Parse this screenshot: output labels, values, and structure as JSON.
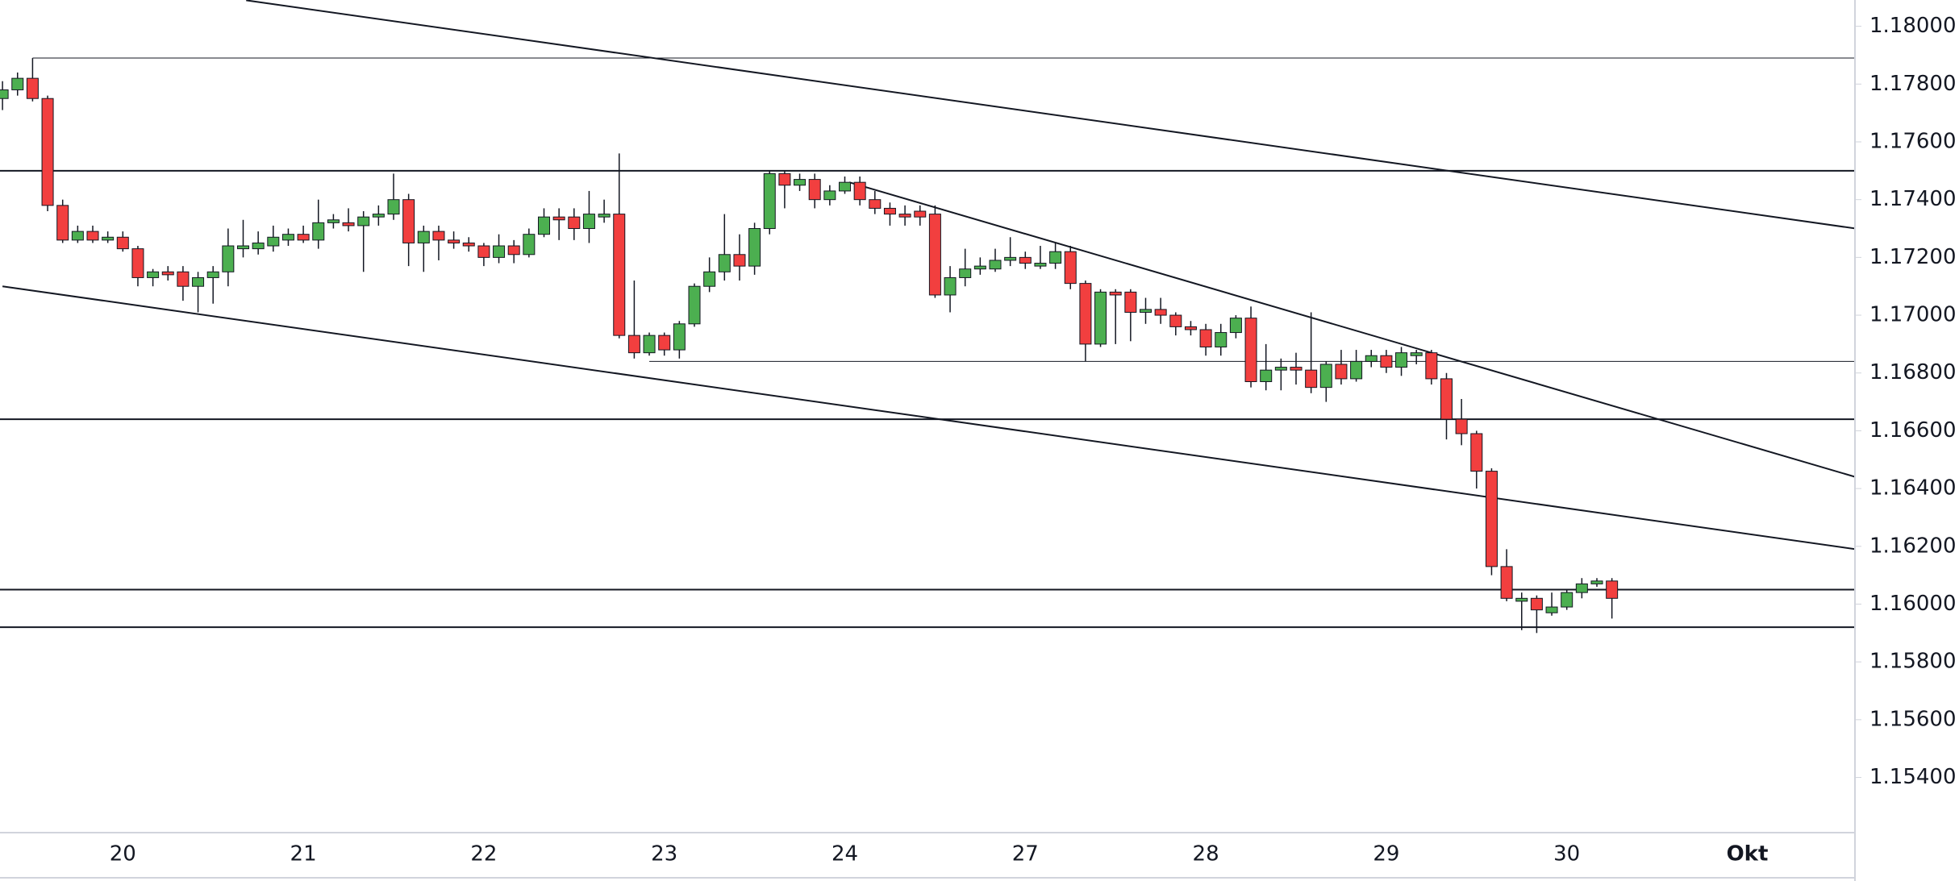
{
  "chart_data": {
    "type": "candlestick",
    "categories": [
      null,
      null,
      null,
      null,
      null,
      null,
      null,
      null,
      "20",
      null,
      null,
      null,
      null,
      null,
      null,
      null,
      null,
      null,
      null,
      null,
      "21",
      null,
      null,
      null,
      null,
      null,
      null,
      null,
      null,
      null,
      null,
      null,
      "22",
      null,
      null,
      null,
      null,
      null,
      null,
      null,
      null,
      null,
      null,
      null,
      "23",
      null,
      null,
      null,
      null,
      null,
      null,
      null,
      null,
      null,
      null,
      null,
      "24",
      null,
      null,
      null,
      null,
      null,
      null,
      null,
      null,
      null,
      null,
      null,
      "27",
      null,
      null,
      null,
      null,
      null,
      null,
      null,
      null,
      null,
      null,
      null,
      "28",
      null,
      null,
      null,
      null,
      null,
      null,
      null,
      null,
      null,
      null,
      null,
      "29",
      null,
      null,
      null,
      null,
      null,
      null,
      null,
      null,
      null,
      null,
      null,
      "30",
      null,
      null,
      null,
      null,
      null,
      null,
      null,
      null,
      null,
      null,
      null,
      "Okt"
    ],
    "open": [
      1.1775,
      1.1778,
      1.1782,
      1.1775,
      1.1738,
      1.1726,
      1.1729,
      1.1726,
      1.1727,
      1.1723,
      1.1713,
      1.1715,
      1.1715,
      1.171,
      1.1713,
      1.1715,
      1.1723,
      1.1723,
      1.1724,
      1.1726,
      1.1728,
      1.1726,
      1.1732,
      1.1732,
      1.1731,
      1.1734,
      1.1735,
      1.174,
      1.1725,
      1.1729,
      1.1726,
      1.1725,
      1.1724,
      1.172,
      1.1724,
      1.1721,
      1.1728,
      1.1734,
      1.1734,
      1.173,
      1.1734,
      1.1735,
      1.1693,
      1.1687,
      1.1693,
      1.1688,
      1.1697,
      1.171,
      1.1715,
      1.1721,
      1.1717,
      1.173,
      1.1749,
      1.1745,
      1.1747,
      1.174,
      1.1743,
      1.1746,
      1.174,
      1.1737,
      1.1735,
      1.1736,
      1.1735,
      1.1707,
      1.1713,
      1.1716,
      1.1716,
      1.1719,
      1.172,
      1.1717,
      1.1718,
      1.1722,
      1.1711,
      1.169,
      1.1708,
      1.1708,
      1.1701,
      1.1702,
      1.17,
      1.1696,
      1.1695,
      1.1689,
      1.1694,
      1.1699,
      1.1677,
      1.1681,
      1.1682,
      1.1681,
      1.1675,
      1.1683,
      1.1678,
      1.1684,
      1.1686,
      1.1682,
      1.1686,
      1.1687,
      1.1678,
      1.1664,
      1.1659,
      1.1646,
      1.1613,
      1.1601,
      1.1602,
      1.1597,
      1.1599,
      1.1604,
      1.1607,
      1.1608,
      null,
      null,
      null,
      null,
      null,
      null,
      null,
      null,
      null
    ],
    "high": [
      1.1781,
      1.1784,
      1.1789,
      1.1776,
      1.174,
      1.1731,
      1.1731,
      1.1729,
      1.1729,
      1.1724,
      1.1716,
      1.1717,
      1.1717,
      1.1715,
      1.1717,
      1.173,
      1.1733,
      1.1729,
      1.1731,
      1.173,
      1.1731,
      1.174,
      1.1735,
      1.1737,
      1.1736,
      1.1738,
      1.1749,
      1.1742,
      1.1731,
      1.1731,
      1.1729,
      1.1727,
      1.1725,
      1.1728,
      1.1726,
      1.173,
      1.1737,
      1.1737,
      1.1737,
      1.1743,
      1.174,
      1.1756,
      1.1712,
      1.1694,
      1.1694,
      1.1698,
      1.1711,
      1.172,
      1.1735,
      1.1728,
      1.1732,
      1.175,
      1.175,
      1.1749,
      1.1749,
      1.1745,
      1.1748,
      1.1748,
      1.1743,
      1.1739,
      1.1738,
      1.1738,
      1.1738,
      1.1717,
      1.1723,
      1.172,
      1.1723,
      1.1727,
      1.1722,
      1.1724,
      1.1725,
      1.1724,
      1.1712,
      1.1709,
      1.1709,
      1.1709,
      1.1706,
      1.1706,
      1.1701,
      1.1698,
      1.1697,
      1.1697,
      1.17,
      1.1703,
      1.169,
      1.1685,
      1.1687,
      1.1701,
      1.1684,
      1.1688,
      1.1688,
      1.1688,
      1.1688,
      1.1689,
      1.1688,
      1.1688,
      1.168,
      1.1671,
      1.166,
      1.1647,
      1.1619,
      1.1604,
      1.1603,
      1.1604,
      1.1605,
      1.1609,
      1.1609,
      1.1609,
      null,
      null,
      null,
      null,
      null,
      null,
      null,
      null,
      null
    ],
    "low": [
      1.1771,
      1.1776,
      1.1774,
      1.1736,
      1.1725,
      1.1725,
      1.1725,
      1.1725,
      1.1722,
      1.171,
      1.171,
      1.1712,
      1.1705,
      1.1701,
      1.1704,
      1.171,
      1.172,
      1.1721,
      1.1722,
      1.1724,
      1.1725,
      1.1723,
      1.173,
      1.1729,
      1.1715,
      1.1731,
      1.1733,
      1.1717,
      1.1715,
      1.1719,
      1.1723,
      1.1722,
      1.1717,
      1.1718,
      1.1718,
      1.172,
      1.1727,
      1.1726,
      1.1726,
      1.1725,
      1.1732,
      1.1692,
      1.1685,
      1.1686,
      1.1686,
      1.1685,
      1.1696,
      1.1708,
      1.1712,
      1.1712,
      1.1714,
      1.1728,
      1.1737,
      1.1743,
      1.1737,
      1.1738,
      1.1742,
      1.1738,
      1.1735,
      1.1731,
      1.1731,
      1.1731,
      1.1706,
      1.1701,
      1.171,
      1.1714,
      1.1715,
      1.1717,
      1.1716,
      1.1716,
      1.1716,
      1.1709,
      1.1684,
      1.1689,
      1.169,
      1.1691,
      1.1697,
      1.1697,
      1.1693,
      1.1693,
      1.1686,
      1.1686,
      1.1692,
      1.1675,
      1.1674,
      1.1674,
      1.1676,
      1.1673,
      1.167,
      1.1676,
      1.1677,
      1.1682,
      1.168,
      1.1679,
      1.1683,
      1.1676,
      1.1657,
      1.1655,
      1.164,
      1.161,
      1.1601,
      1.1591,
      1.159,
      1.1596,
      1.1598,
      1.1602,
      1.1606,
      1.1595,
      null,
      null,
      null,
      null,
      null,
      null,
      null,
      null,
      null
    ],
    "close": [
      1.1778,
      1.1782,
      1.1775,
      1.1738,
      1.1726,
      1.1729,
      1.1726,
      1.1727,
      1.1723,
      1.1713,
      1.1715,
      1.1714,
      1.171,
      1.1713,
      1.1715,
      1.1724,
      1.1724,
      1.1725,
      1.1727,
      1.1728,
      1.1726,
      1.1732,
      1.1733,
      1.1731,
      1.1734,
      1.1735,
      1.174,
      1.1725,
      1.1729,
      1.1726,
      1.1725,
      1.1724,
      1.172,
      1.1724,
      1.1721,
      1.1728,
      1.1734,
      1.1733,
      1.173,
      1.1735,
      1.1735,
      1.1693,
      1.1687,
      1.1693,
      1.1688,
      1.1697,
      1.171,
      1.1715,
      1.1721,
      1.1717,
      1.173,
      1.1749,
      1.1745,
      1.1747,
      1.174,
      1.1743,
      1.1746,
      1.174,
      1.1737,
      1.1735,
      1.1734,
      1.1734,
      1.1707,
      1.1713,
      1.1716,
      1.1717,
      1.1719,
      1.172,
      1.1718,
      1.1718,
      1.1722,
      1.1711,
      1.169,
      1.1708,
      1.1707,
      1.1701,
      1.1702,
      1.17,
      1.1696,
      1.1695,
      1.1689,
      1.1694,
      1.1699,
      1.1677,
      1.1681,
      1.1682,
      1.1681,
      1.1675,
      1.1683,
      1.1678,
      1.1684,
      1.1686,
      1.1682,
      1.1687,
      1.1687,
      1.1678,
      1.1664,
      1.1659,
      1.1646,
      1.1613,
      1.1602,
      1.1602,
      1.1598,
      1.1599,
      1.1604,
      1.1607,
      1.1608,
      1.1602,
      null,
      null,
      null,
      null,
      null,
      null,
      null,
      null,
      null
    ],
    "up_color": "#4caf50",
    "down_color": "#f23f3f",
    "ylim": [
      1.15209,
      1.18091
    ],
    "yticks": [
      {
        "value": 1.154,
        "label": "1.15400"
      },
      {
        "value": 1.156,
        "label": "1.15600"
      },
      {
        "value": 1.158,
        "label": "1.15800"
      },
      {
        "value": 1.16,
        "label": "1.16000"
      },
      {
        "value": 1.162,
        "label": "1.16200"
      },
      {
        "value": 1.164,
        "label": "1.16400"
      },
      {
        "value": 1.166,
        "label": "1.16600"
      },
      {
        "value": 1.168,
        "label": "1.16800"
      },
      {
        "value": 1.17,
        "label": "1.17000"
      },
      {
        "value": 1.172,
        "label": "1.17200"
      },
      {
        "value": 1.174,
        "label": "1.17400"
      },
      {
        "value": 1.176,
        "label": "1.17600"
      },
      {
        "value": 1.178,
        "label": "1.17800"
      },
      {
        "value": 1.18,
        "label": "1.18000"
      }
    ],
    "grid": false,
    "levels": [
      {
        "value": 1.1789,
        "from": 2
      },
      {
        "value": 1.175
      },
      {
        "value": 1.1684,
        "from": 43
      },
      {
        "value": 1.1664
      },
      {
        "value": 1.1605
      },
      {
        "value": 1.1592
      }
    ],
    "trendlines": [
      {
        "x": [
          16.2,
          123.2
        ],
        "y": [
          1.1809,
          1.173
        ]
      },
      {
        "x": [
          0,
          123.2
        ],
        "y": [
          1.171,
          1.1619
        ]
      },
      {
        "x": [
          56.3,
          123.2
        ],
        "y": [
          1.1746,
          1.1644
        ]
      }
    ]
  }
}
